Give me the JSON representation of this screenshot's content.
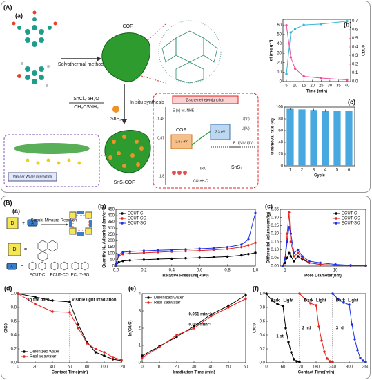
{
  "labels": {
    "A": "(A)",
    "Aa": "(a)",
    "B": "(B)",
    "Ba": "(a)"
  },
  "scheme_A": {
    "cof": "COF",
    "method": "Solvothermal method",
    "reagent1": "SnCl₄·5H₂O",
    "reagent2": "CH₃CSNH₂",
    "insitu": "In-situ synthesis",
    "sns2": "SnS₂",
    "vdw": "Van der Waals interaction",
    "composite": "SnS₂COF",
    "zscheme": "Z-scheme heterojunction",
    "eaxis": "E (V) vs. NHE",
    "e1": "-1.48",
    "e2": "0.87",
    "e3": "1.8",
    "zcof": "COF",
    "gap1": "2.67 eV",
    "gap2": "2.3 eV",
    "u6": "U(VI)",
    "u4": "U(IV)",
    "eu": "E U(VI)/U(IV)",
    "zsns2": "SnS₂",
    "ipa": "IPA",
    "co2": "CO₂+H₂O"
  },
  "scheme_B": {
    "d": "D",
    "a": "A",
    "reaction": "Suzuki-Miyaura Reaction",
    "d2": "D",
    "a2": "A",
    "c1": "ECUT-C",
    "c2": "ECUT-CO",
    "c3": "ECUT-SO"
  },
  "chart_data": [
    {
      "type": "line",
      "panel": "(b)",
      "xlabel": "Time (min)",
      "ylabel": "qt (mg g⁻¹)",
      "y2label": "Ct/C0",
      "x": [
        5,
        7.5,
        10,
        15,
        25,
        40
      ],
      "xlim": [
        3,
        42
      ],
      "xticks": [
        5,
        10,
        15,
        20,
        25,
        30,
        35,
        40
      ],
      "ylim": [
        0,
        66
      ],
      "yticks": [
        0,
        10,
        20,
        30,
        40,
        50,
        60
      ],
      "y2lim": [
        0,
        0.72
      ],
      "y2ticks": [
        {
          "value": 0,
          "label": "0.0"
        },
        0.1,
        0.2,
        0.3,
        0.4,
        0.5,
        0.6,
        0.7
      ],
      "series": [
        {
          "color": "#3bb6d6",
          "values": [
            8,
            52,
            56,
            60,
            61,
            64
          ]
        },
        {
          "color": "#e8509a",
          "axis": "y2",
          "values": [
            0.65,
            0.28,
            0.15,
            0.06,
            0.04,
            0.02
          ]
        }
      ]
    },
    {
      "type": "bar",
      "panel": "(c)",
      "xlabel": "Cycle",
      "ylabel": "U removal rate (%)",
      "categories": [
        "1",
        "2",
        "3",
        "4",
        "5",
        "6"
      ],
      "values": [
        97,
        96,
        95,
        94,
        93,
        93
      ],
      "errors": [
        1.5,
        1.5,
        2,
        2,
        2,
        2
      ],
      "ylim": [
        0,
        100
      ],
      "yticks": [
        0,
        20,
        40,
        60,
        80,
        100
      ],
      "color": "#48a8e0"
    },
    {
      "type": "line",
      "panel": "(b)",
      "xlabel": "Relative Pressure(P/P0)",
      "ylabel": "Quantity N₂ Adsorbed (cm³g⁻¹)",
      "legend": "upper left",
      "x": [
        0,
        0.02,
        0.05,
        0.1,
        0.2,
        0.3,
        0.4,
        0.5,
        0.6,
        0.7,
        0.8,
        0.9,
        0.95,
        1.0
      ],
      "xlim": [
        0,
        1.0
      ],
      "xticks": [
        {
          "value": 0,
          "label": "0.0"
        },
        0.2,
        0.4,
        0.6,
        0.8,
        {
          "value": 1.0,
          "label": "1.0"
        }
      ],
      "ylim": [
        0,
        450
      ],
      "yticks": [
        0,
        50,
        100,
        150,
        200,
        250,
        300,
        350,
        400,
        450
      ],
      "series": [
        {
          "name": "ECUT-C",
          "color": "#000000",
          "values": [
            5,
            30,
            40,
            45,
            50,
            55,
            58,
            62,
            66,
            70,
            75,
            85,
            95,
            105
          ]
        },
        {
          "name": "ECUT-CO",
          "color": "#e8201a",
          "values": [
            10,
            80,
            95,
            100,
            105,
            110,
            115,
            118,
            122,
            128,
            135,
            150,
            165,
            185
          ]
        },
        {
          "name": "ECUT-SO",
          "color": "#1a2fe8",
          "values": [
            15,
            90,
            110,
            115,
            120,
            125,
            128,
            132,
            137,
            142,
            150,
            170,
            210,
            420
          ]
        }
      ]
    },
    {
      "type": "line",
      "panel": "(c)",
      "xlabel": "Pore Diameter(nm)",
      "ylabel": "Differential Volume(cm³/g)",
      "legend": "upper right",
      "xlog": true,
      "x": [
        0.9,
        1.0,
        1.1,
        1.2,
        1.3,
        1.5,
        1.8,
        2.2,
        3,
        5,
        10,
        20,
        40
      ],
      "xlim": [
        0.8,
        40
      ],
      "xticks": [
        1,
        10
      ],
      "ylim": [
        0,
        0.35
      ],
      "yticks": [
        {
          "value": 0,
          "label": "0.00"
        },
        {
          "value": 0.05,
          "label": "0.05"
        },
        {
          "value": 0.1,
          "label": "0.10"
        },
        {
          "value": 0.15,
          "label": "0.15"
        },
        {
          "value": 0.2,
          "label": "0.20"
        },
        {
          "value": 0.25,
          "label": "0.25"
        },
        {
          "value": 0.3,
          "label": "0.30"
        },
        {
          "value": 0.35,
          "label": "0.35"
        }
      ],
      "series": [
        {
          "name": "ECUT-C",
          "color": "#000000",
          "values": [
            0,
            0.02,
            0.05,
            0.08,
            0.06,
            0.03,
            0.06,
            0.04,
            0.02,
            0.01,
            0.005,
            0.003,
            0.002
          ]
        },
        {
          "name": "ECUT-CO",
          "color": "#e8201a",
          "values": [
            0,
            0.05,
            0.2,
            0.33,
            0.15,
            0.06,
            0.08,
            0.05,
            0.02,
            0.01,
            0.005,
            0.003,
            0.002
          ]
        },
        {
          "name": "ECUT-SO",
          "color": "#1a2fe8",
          "values": [
            0,
            0.04,
            0.15,
            0.24,
            0.2,
            0.08,
            0.1,
            0.06,
            0.03,
            0.02,
            0.01,
            0.005,
            0.003
          ]
        }
      ]
    },
    {
      "type": "line",
      "panel": "(d)",
      "xlabel": "Contact Time(min)",
      "ylabel": "C/C0",
      "legend": "lower left",
      "x": [
        0,
        20,
        40,
        60,
        70,
        80,
        90,
        100,
        110,
        120
      ],
      "xlim": [
        0,
        120
      ],
      "xticks": [
        0,
        20,
        40,
        60,
        80,
        100,
        120
      ],
      "ylim": [
        0,
        1.0
      ],
      "yticks": [
        {
          "value": 0,
          "label": "0.0"
        },
        0.2,
        0.4,
        0.6,
        0.8,
        {
          "value": 1.0,
          "label": "1.0"
        }
      ],
      "vlines": [
        60
      ],
      "annotations": [
        {
          "text": "In the dark",
          "color": "#000000"
        },
        {
          "text": "Visible light irradiation",
          "color": "#e8201a"
        }
      ],
      "series": [
        {
          "name": "Deionized water",
          "color": "#000000",
          "values": [
            1,
            0.95,
            0.9,
            0.88,
            0.55,
            0.3,
            0.15,
            0.1,
            0.05,
            0.03
          ]
        },
        {
          "name": "Real seawater",
          "color": "#e8201a",
          "values": [
            1,
            0.85,
            0.74,
            0.73,
            0.5,
            0.28,
            0.2,
            0.15,
            0.08,
            0.04
          ]
        }
      ]
    },
    {
      "type": "line",
      "panel": "(e)",
      "xlabel": "Irradiation Time (min)",
      "ylabel": "ln(C0/C)",
      "legend": "upper left",
      "x": [
        0,
        10,
        20,
        30,
        40,
        50,
        60
      ],
      "xlim": [
        0,
        60
      ],
      "xticks": [
        0,
        10,
        20,
        30,
        40,
        50,
        60
      ],
      "ylim": [
        0,
        4
      ],
      "yticks": [
        0,
        1,
        2,
        3,
        4
      ],
      "annotations": [
        {
          "text": "0.061 min⁻¹",
          "color": "#e8201a"
        },
        {
          "text": "0.063 min⁻¹",
          "color": "#000000"
        }
      ],
      "series": [
        {
          "name": "Deionized water",
          "color": "#000000",
          "values": [
            0.4,
            0.95,
            1.5,
            2.1,
            2.8,
            3.3,
            3.9
          ]
        },
        {
          "name": "Real seawater",
          "color": "#e8201a",
          "values": [
            0.3,
            0.9,
            1.6,
            2.0,
            2.7,
            3.2,
            3.7
          ]
        }
      ]
    },
    {
      "type": "line",
      "panel": "(f)",
      "xlabel": "Contact Time(min)",
      "ylabel": "C/C0",
      "x": [
        0,
        20,
        40,
        60,
        70,
        80,
        90,
        100,
        110,
        120,
        140,
        160,
        180,
        190,
        200,
        210,
        220,
        230,
        240,
        260,
        280,
        300,
        310,
        320,
        330,
        340,
        350,
        360
      ],
      "xlim": [
        0,
        360
      ],
      "xticks": [
        0,
        60,
        120,
        180,
        240,
        300,
        360
      ],
      "ylim": [
        0,
        1.0
      ],
      "yticks": [
        {
          "value": 0,
          "label": "0.0"
        },
        0.2,
        0.4,
        0.6,
        0.8,
        {
          "value": 1.0,
          "label": "1.0"
        }
      ],
      "vlines": [
        120,
        240
      ],
      "annotations": [
        {
          "text": "Dark",
          "color": "#000000"
        },
        {
          "text": "Light",
          "color": "#000000"
        },
        {
          "text": "1 st",
          "color": "#000000"
        },
        {
          "text": "Dark",
          "color": "#000000"
        },
        {
          "text": "Light",
          "color": "#000000"
        },
        {
          "text": "2 nd",
          "color": "#e8201a"
        },
        {
          "text": "Dark",
          "color": "#000000"
        },
        {
          "text": "Light",
          "color": "#000000"
        },
        {
          "text": "3 rd",
          "color": "#1a2fe8"
        }
      ],
      "series": [
        {
          "color": "#000000",
          "values": [
            1,
            0.9,
            0.85,
            0.82,
            0.5,
            0.3,
            0.15,
            0.05,
            0.02,
            0.01,
            null,
            null,
            null,
            null,
            null,
            null,
            null,
            null,
            null,
            null,
            null,
            null,
            null,
            null,
            null,
            null,
            null,
            null
          ]
        },
        {
          "color": "#e8201a",
          "values": [
            null,
            null,
            null,
            null,
            null,
            null,
            null,
            null,
            null,
            1,
            0.92,
            0.86,
            0.83,
            0.52,
            0.32,
            0.16,
            0.06,
            0.02,
            0.01,
            null,
            null,
            null,
            null,
            null,
            null,
            null,
            null,
            null
          ]
        },
        {
          "color": "#1a2fe8",
          "values": [
            null,
            null,
            null,
            null,
            null,
            null,
            null,
            null,
            null,
            null,
            null,
            null,
            null,
            null,
            null,
            null,
            null,
            null,
            1,
            0.92,
            0.87,
            0.84,
            0.55,
            0.34,
            0.18,
            0.07,
            0.03,
            0.01
          ]
        }
      ]
    }
  ]
}
